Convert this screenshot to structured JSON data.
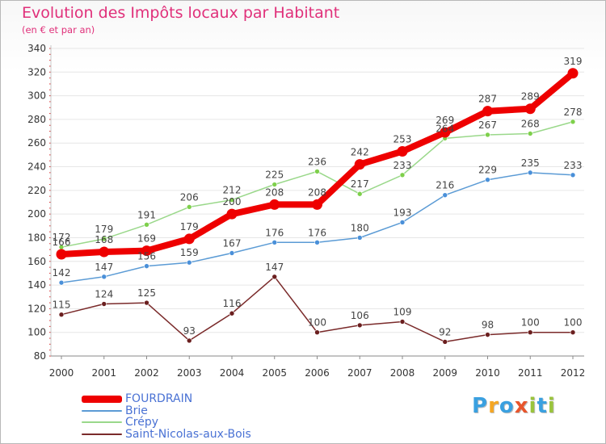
{
  "title": "Evolution des Impôts locaux par Habitant",
  "subtitle": "(en € et par an)",
  "logo": {
    "text": "Proxiti",
    "letters": [
      "P",
      "r",
      "o",
      "x",
      "i",
      "t",
      "i"
    ],
    "colors": [
      "#3aa0e0",
      "#f5a623",
      "#3aa0e0",
      "#e8552c",
      "#9ac43c",
      "#3aa0e0",
      "#9ac43c"
    ]
  },
  "chart_data": {
    "type": "line",
    "title": "Evolution des Impôts locaux par Habitant",
    "subtitle": "(en € et par an)",
    "xlabel": "",
    "ylabel": "",
    "ylim": [
      80,
      340
    ],
    "y_ticks": [
      80,
      100,
      120,
      140,
      160,
      180,
      200,
      220,
      240,
      260,
      280,
      300,
      320,
      340
    ],
    "grid": true,
    "legend_position": "bottom-left",
    "categories": [
      "2000",
      "2001",
      "2002",
      "2003",
      "2004",
      "2005",
      "2006",
      "2007",
      "2008",
      "2009",
      "2010",
      "2011",
      "2012"
    ],
    "series": [
      {
        "name": "FOURDRAIN",
        "color": "#ee0000",
        "emphasis": true,
        "values": [
          166,
          168,
          169,
          179,
          200,
          208,
          208,
          242,
          253,
          269,
          287,
          289,
          319
        ]
      },
      {
        "name": "Brie",
        "color": "#5b9bd5",
        "marker_color": "#4a90d9",
        "values": [
          142,
          147,
          156,
          159,
          167,
          176,
          176,
          180,
          193,
          216,
          229,
          235,
          233
        ]
      },
      {
        "name": "Crépy",
        "color": "#9ad88a",
        "marker_color": "#7ed04b",
        "values": [
          172,
          179,
          191,
          206,
          212,
          225,
          236,
          217,
          233,
          264,
          267,
          268,
          278
        ]
      },
      {
        "name": "Saint-Nicolas-aux-Bois",
        "color": "#7a2a2a",
        "marker_color": "#6b1f1f",
        "values": [
          115,
          124,
          125,
          93,
          116,
          147,
          100,
          106,
          109,
          92,
          98,
          100,
          100
        ]
      }
    ]
  }
}
